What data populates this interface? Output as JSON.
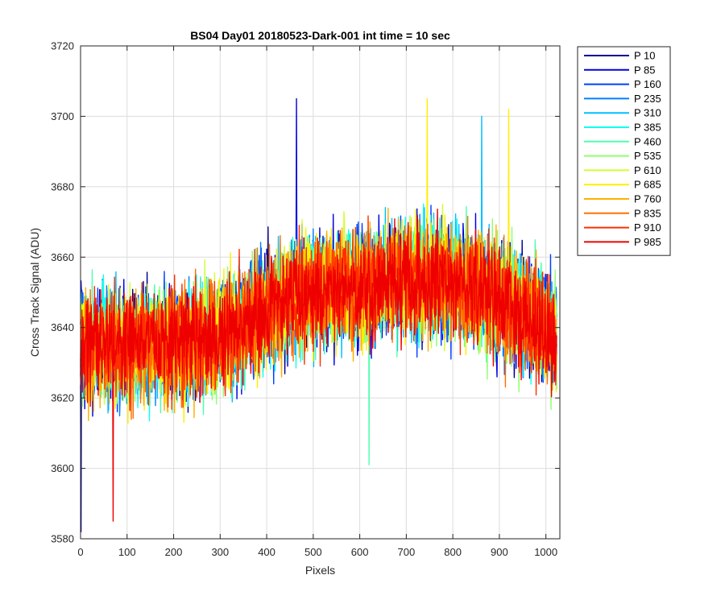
{
  "chart_data": {
    "type": "line",
    "title": "BS04 Day01 20180523-Dark-001 int time = 10 sec",
    "xlabel": "Pixels",
    "ylabel": "Cross Track Signal (ADU)",
    "xlim": [
      0,
      1030
    ],
    "ylim": [
      3580,
      3720
    ],
    "xticks": [
      0,
      100,
      200,
      300,
      400,
      500,
      600,
      700,
      800,
      900,
      1000
    ],
    "yticks": [
      3580,
      3600,
      3620,
      3640,
      3660,
      3680,
      3700,
      3720
    ],
    "grid": true,
    "legend_position": "outside-top-right",
    "n_points": 1024,
    "baseline_profile": {
      "x": [
        0,
        100,
        200,
        300,
        400,
        500,
        600,
        700,
        800,
        900,
        1000,
        1023
      ],
      "y": [
        3634,
        3635,
        3635,
        3637,
        3645,
        3650,
        3652,
        3654,
        3653,
        3648,
        3640,
        3637
      ]
    },
    "noise_amplitude_adu": 14,
    "series": [
      {
        "name": "P 10",
        "color": "#00008F"
      },
      {
        "name": "P 85",
        "color": "#0000DF"
      },
      {
        "name": "P 160",
        "color": "#0040FF"
      },
      {
        "name": "P 235",
        "color": "#0080FF"
      },
      {
        "name": "P 310",
        "color": "#00BFFF"
      },
      {
        "name": "P 385",
        "color": "#10FFEF"
      },
      {
        "name": "P 460",
        "color": "#50FFAF"
      },
      {
        "name": "P 535",
        "color": "#90FF70"
      },
      {
        "name": "P 610",
        "color": "#CFFF30"
      },
      {
        "name": "P 685",
        "color": "#FFEF00"
      },
      {
        "name": "P 760",
        "color": "#FFAF00"
      },
      {
        "name": "P 835",
        "color": "#FF7000"
      },
      {
        "name": "P 910",
        "color": "#FF3000"
      },
      {
        "name": "P 985",
        "color": "#EF0000"
      }
    ],
    "annotations": [
      {
        "series": "P 10",
        "x": 1,
        "y": 3582
      },
      {
        "series": "P 985",
        "x": 70,
        "y": 3585
      },
      {
        "series": "P 85",
        "x": 464,
        "y": 3705
      },
      {
        "series": "P 685",
        "x": 745,
        "y": 3705
      },
      {
        "series": "P 685",
        "x": 920,
        "y": 3702
      },
      {
        "series": "P 310",
        "x": 862,
        "y": 3700
      },
      {
        "series": "P 460",
        "x": 620,
        "y": 3601
      }
    ]
  }
}
